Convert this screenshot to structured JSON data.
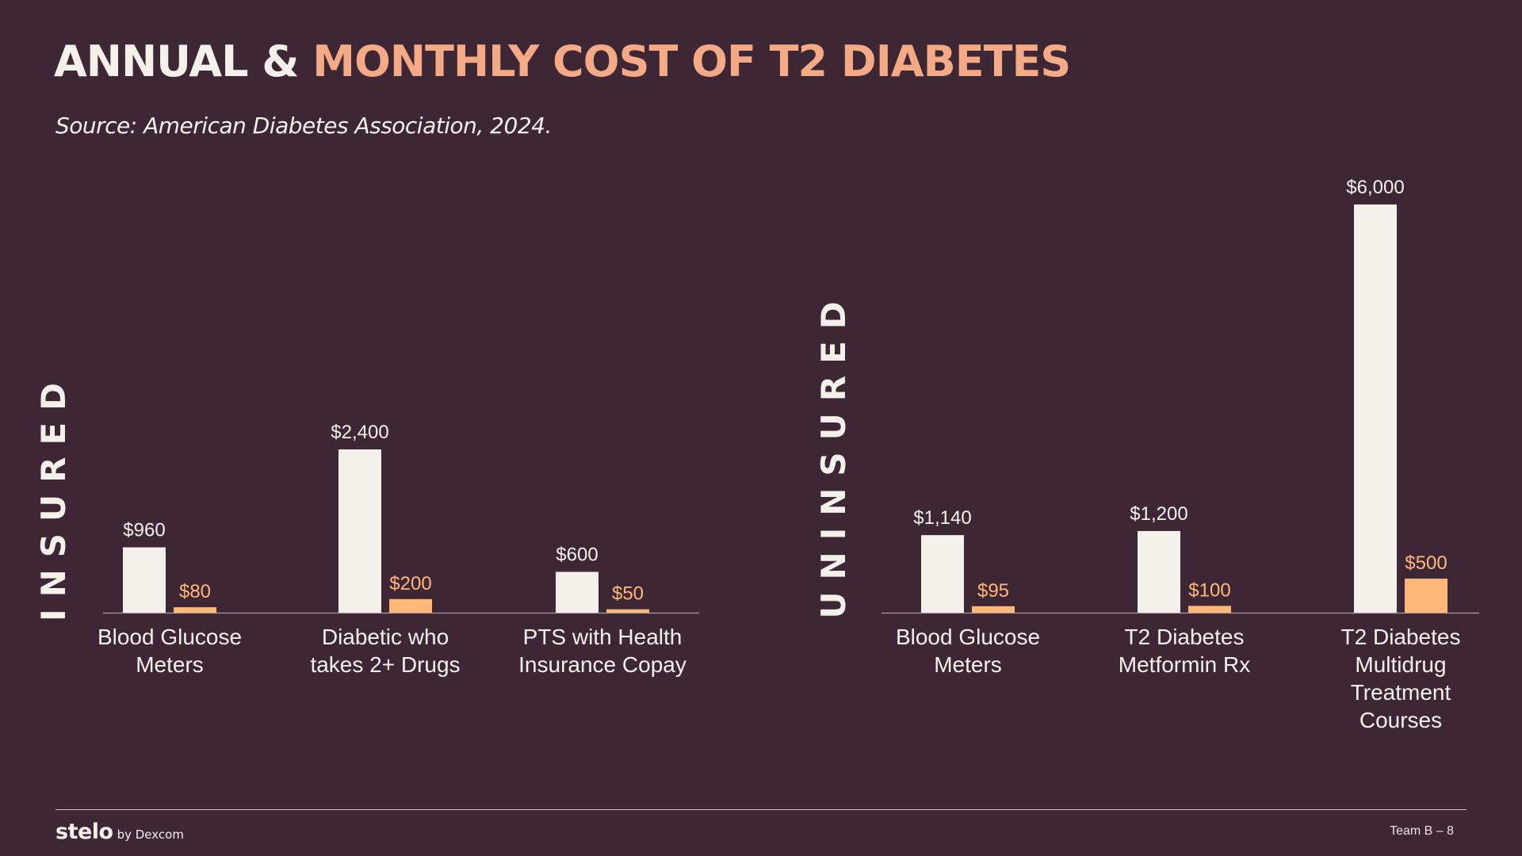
{
  "title": {
    "part1": "ANNUAL & ",
    "part2": "MONTHLY COST OF T2 DIABETES"
  },
  "subtitle": "Source: American Diabetes Association, 2024.",
  "colors": {
    "background": "#3e2735",
    "annual": "#f4f1ea",
    "monthly": "#ffb878",
    "title_accent": "#f5aa86"
  },
  "chart_data": [
    {
      "type": "bar",
      "group_label": "INSURED",
      "categories": [
        [
          "Blood Glucose",
          "Meters"
        ],
        [
          "Diabetic who",
          "takes 2+ Drugs"
        ],
        [
          "PTS with Health",
          "Insurance Copay"
        ]
      ],
      "series": [
        {
          "name": "Annual",
          "values": [
            960,
            2400,
            600
          ],
          "labels": [
            "$960",
            "$2,400",
            "$600"
          ]
        },
        {
          "name": "Monthly",
          "values": [
            80,
            200,
            50
          ],
          "labels": [
            "$80",
            "$200",
            "$50"
          ]
        }
      ],
      "ylim": [
        0,
        6000
      ]
    },
    {
      "type": "bar",
      "group_label": "UNINSURED",
      "categories": [
        [
          "Blood Glucose",
          "Meters"
        ],
        [
          "T2 Diabetes",
          "Metformin Rx"
        ],
        [
          "T2 Diabetes",
          "Multidrug",
          "Treatment",
          "Courses"
        ]
      ],
      "series": [
        {
          "name": "Annual",
          "values": [
            1140,
            1200,
            6000
          ],
          "labels": [
            "$1,140",
            "$1,200",
            "$6,000"
          ]
        },
        {
          "name": "Monthly",
          "values": [
            95,
            100,
            500
          ],
          "labels": [
            "$95",
            "$100",
            "$500"
          ]
        }
      ],
      "ylim": [
        0,
        6000
      ]
    }
  ],
  "footer": {
    "brand_name": "stelo",
    "brand_by": "by Dexcom",
    "page": "Team B – 8"
  }
}
